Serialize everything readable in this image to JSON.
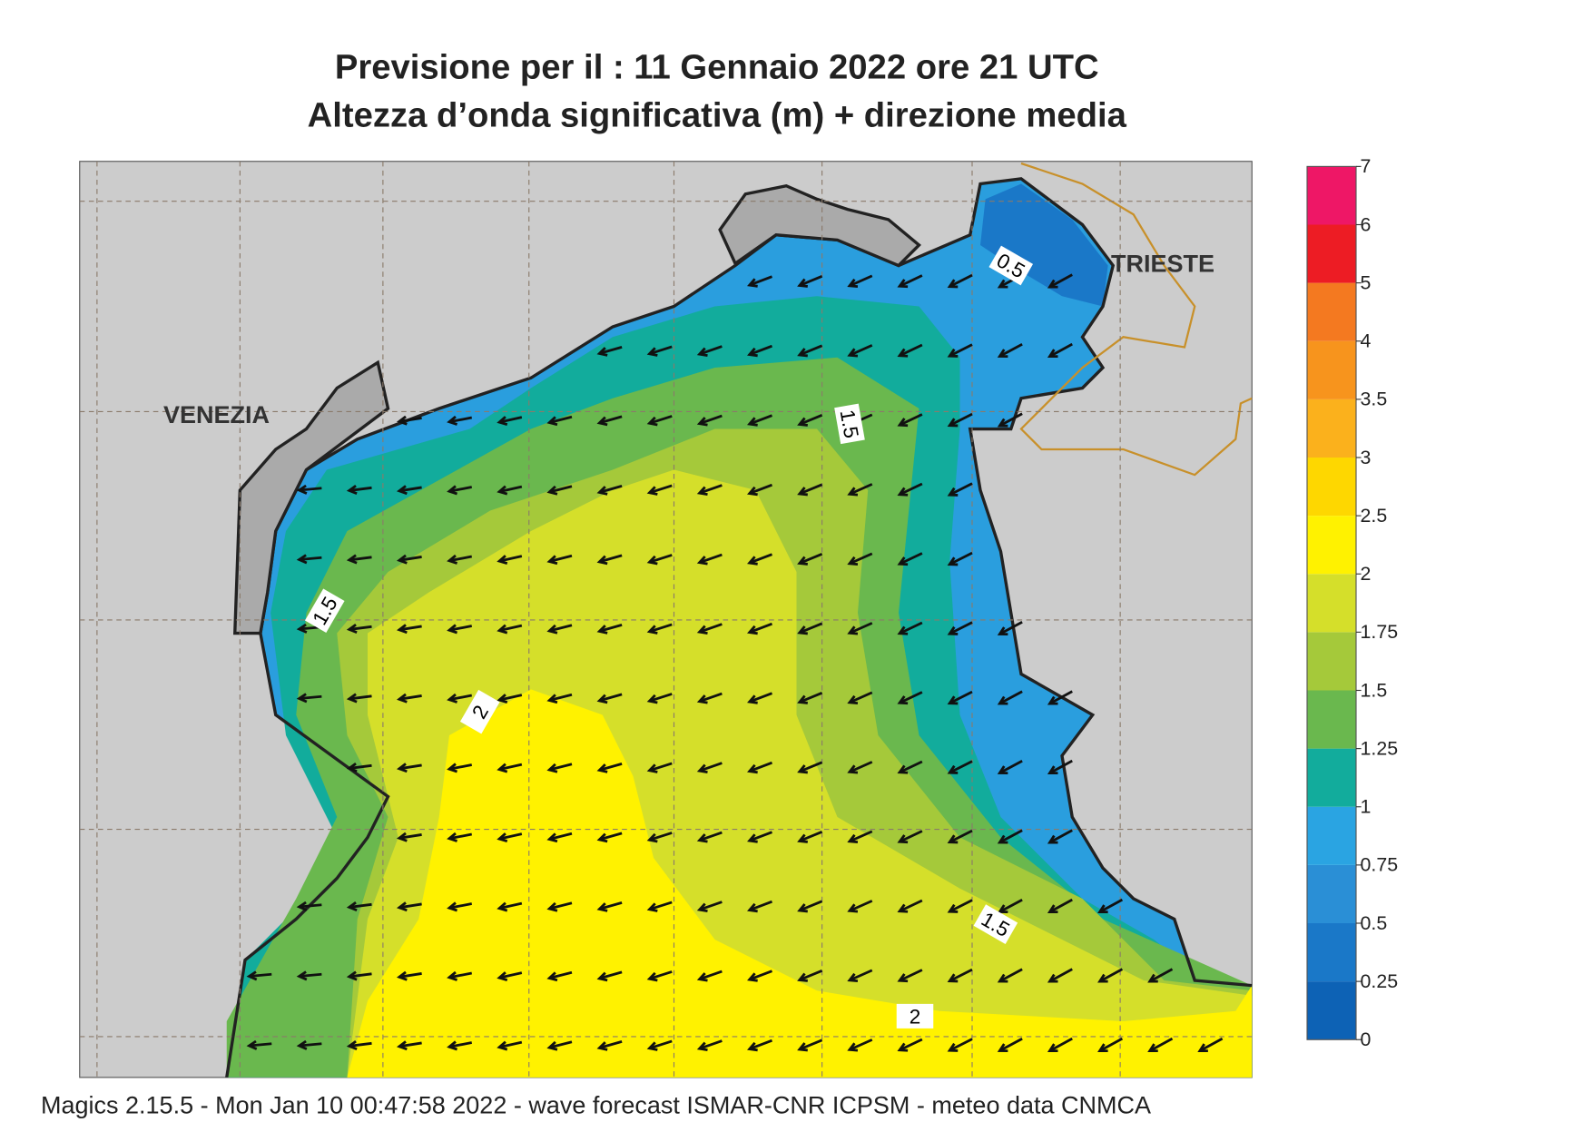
{
  "header": {
    "title": "Previsione per il  :  11  Gennaio  2022   ore 21 UTC",
    "subtitle": "Altezza d’onda significativa (m) + direzione media"
  },
  "places": {
    "venezia": "VENEZIA",
    "trieste": "TRIESTE"
  },
  "contour_labels": [
    "0.5",
    "1.5",
    "1.5",
    "1.5",
    "2",
    "2"
  ],
  "legend": {
    "levels": [
      0,
      0.25,
      0.5,
      0.75,
      1,
      1.25,
      1.5,
      1.75,
      2,
      2.5,
      3,
      3.5,
      4,
      5,
      6,
      7
    ],
    "colors": [
      "#0d62b5",
      "#1a78c8",
      "#2a8fd6",
      "#2aa4e2",
      "#12ac9c",
      "#6ab84e",
      "#a5c93a",
      "#d5df2a",
      "#fff200",
      "#fed700",
      "#fbb11c",
      "#f7941d",
      "#f47920",
      "#ed1c24",
      "#ee1766"
    ]
  },
  "footer": "Magics 2.15.5 - Mon Jan 10 00:47:58 2022 - wave forecast  ISMAR-CNR  ICPSM - meteo data   CNMCA"
}
